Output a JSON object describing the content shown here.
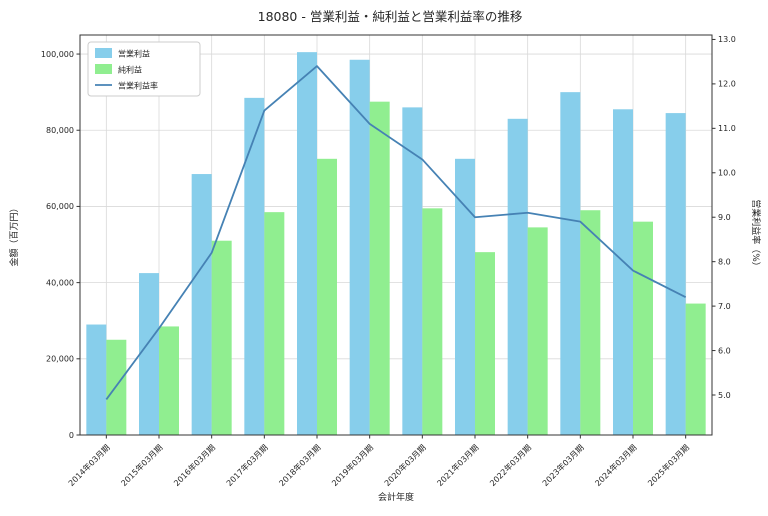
{
  "chart_data": {
    "type": "bar",
    "title": "18080 - 営業利益・純利益と営業利益率の推移",
    "xlabel": "会計年度",
    "ylabel_left": "金額（百万円）",
    "ylabel_right": "営業利益率（%）",
    "categories": [
      "2014年03月期",
      "2015年03月期",
      "2016年03月期",
      "2017年03月期",
      "2018年03月期",
      "2019年03月期",
      "2020年03月期",
      "2021年03月期",
      "2022年03月期",
      "2023年03月期",
      "2024年03月期",
      "2025年03月期"
    ],
    "series": [
      {
        "name": "営業利益",
        "type": "bar",
        "axis": "left",
        "color": "#87CEEB",
        "values": [
          29000,
          42500,
          68500,
          88500,
          100500,
          98500,
          86000,
          72500,
          83000,
          90000,
          85500,
          84500
        ]
      },
      {
        "name": "純利益",
        "type": "bar",
        "axis": "left",
        "color": "#90EE90",
        "values": [
          25000,
          28500,
          51000,
          58500,
          72500,
          87500,
          59500,
          48000,
          54500,
          59000,
          56000,
          34500
        ]
      },
      {
        "name": "営業利益率",
        "type": "line",
        "axis": "right",
        "color": "#4682B4",
        "values": [
          4.9,
          6.5,
          8.2,
          11.4,
          12.4,
          11.1,
          10.3,
          9.0,
          9.1,
          8.9,
          7.8,
          7.2
        ]
      }
    ],
    "ylim_left": [
      0,
      105000
    ],
    "ylim_right": [
      4.1,
      13.1
    ],
    "yticks_left": {
      "values": [
        0,
        20000,
        40000,
        60000,
        80000,
        100000
      ],
      "labels": [
        "0",
        "20,000",
        "40,000",
        "60,000",
        "80,000",
        "100,000"
      ]
    },
    "yticks_right": {
      "values": [
        5,
        6,
        7,
        8,
        9,
        10,
        11,
        12,
        13
      ],
      "labels": [
        "5.0",
        "6.0",
        "7.0",
        "8.0",
        "9.0",
        "10.0",
        "11.0",
        "12.0",
        "13.0"
      ]
    },
    "grid": true,
    "legend_position": "upper-left",
    "colors": {
      "grid": "#d9d9d9",
      "axis": "#333333",
      "background": "#ffffff",
      "legend_border": "#cccccc"
    }
  }
}
